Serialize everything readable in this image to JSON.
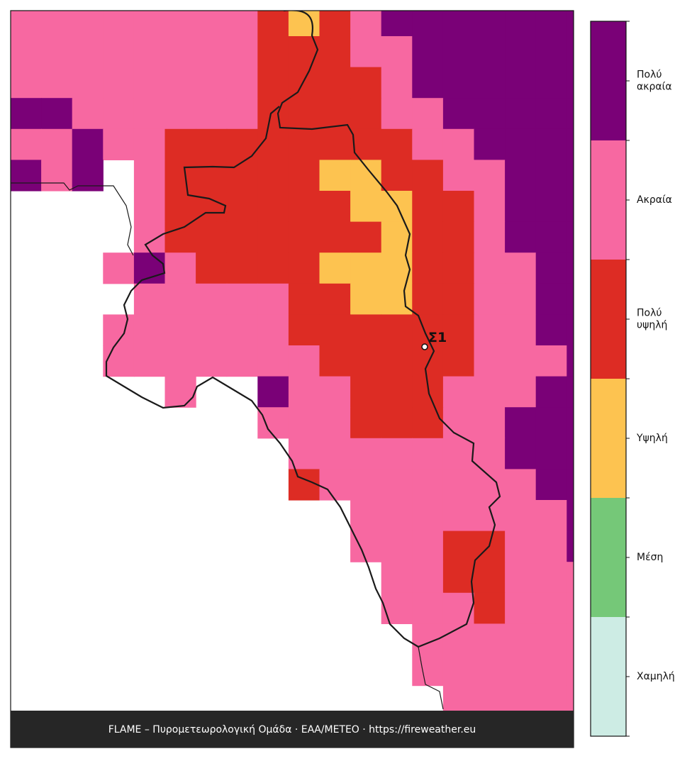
{
  "legend": {
    "levels": [
      {
        "label": "Χαμηλή",
        "color": "#cdece4"
      },
      {
        "label": "Μέση",
        "color": "#75c878"
      },
      {
        "label": "Υψηλή",
        "color": "#fdc350"
      },
      {
        "label": "Πολύ υψηλή",
        "color": "#dd2c24"
      },
      {
        "label": "Ακραία",
        "color": "#f768a1"
      },
      {
        "label": "Πολύ ακραία",
        "color": "#7a0177"
      }
    ]
  },
  "station": {
    "label": "Σ1"
  },
  "footer": {
    "text": "FLAME – Πυρομετεωρολογική Ομάδα · ΕΑΑ/METEO · https://fireweather.eu"
  }
}
